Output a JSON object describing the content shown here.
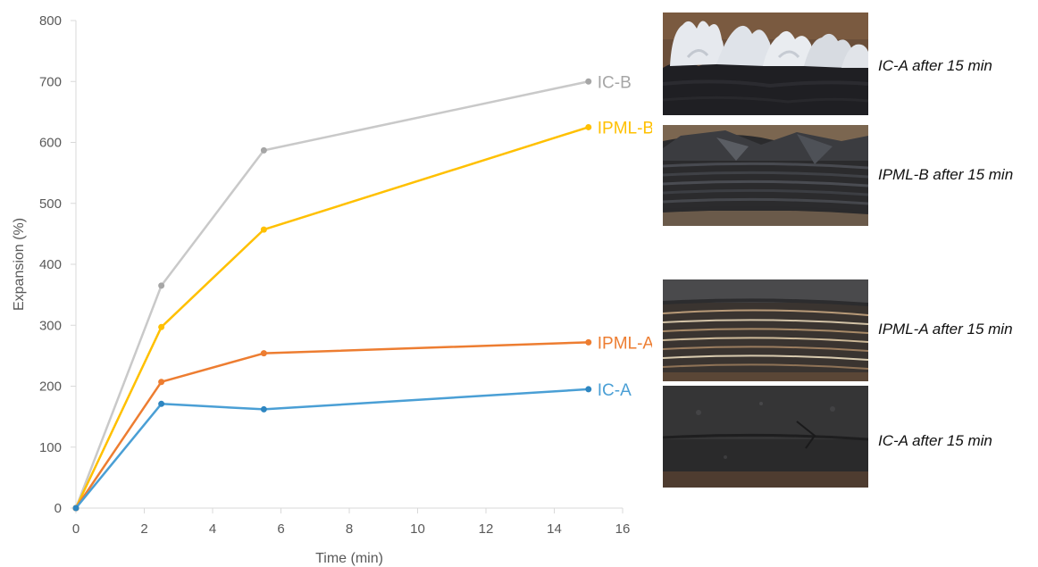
{
  "chart_data": {
    "type": "line",
    "title": "",
    "xlabel": "Time (min)",
    "ylabel": "Expansion (%)",
    "xlim": [
      0,
      16
    ],
    "ylim": [
      0,
      800
    ],
    "xticks": [
      0,
      2,
      4,
      6,
      8,
      10,
      12,
      14,
      16
    ],
    "yticks": [
      0,
      100,
      200,
      300,
      400,
      500,
      600,
      700,
      800
    ],
    "grid": false,
    "legend": "inline labels at line ends",
    "series": [
      {
        "name": "IC-B",
        "color": "#c9c9c9",
        "marker_color": "#a6a6a6",
        "label_color": "#a6a6a6",
        "x": [
          0,
          2.5,
          5.5,
          15
        ],
        "y": [
          0,
          365,
          587,
          700
        ]
      },
      {
        "name": "IPML-B",
        "color": "#ffc000",
        "marker_color": "#ffc000",
        "label_color": "#ffc000",
        "x": [
          0,
          2.5,
          5.5,
          15
        ],
        "y": [
          0,
          297,
          457,
          625
        ]
      },
      {
        "name": "IPML-A",
        "color": "#ed7d31",
        "marker_color": "#ed7d31",
        "label_color": "#ed7d31",
        "x": [
          0,
          2.5,
          5.5,
          15
        ],
        "y": [
          0,
          207,
          254,
          272
        ]
      },
      {
        "name": "IC-A",
        "color": "#4a9fd5",
        "marker_color": "#2e86c1",
        "label_color": "#4a9fd5",
        "x": [
          0,
          2.5,
          5.5,
          15
        ],
        "y": [
          0,
          171,
          162,
          195
        ]
      }
    ]
  },
  "photos": [
    {
      "caption": "IC-A after 15 min"
    },
    {
      "caption": "IPML-B after 15 min"
    },
    {
      "caption": "IPML-A after 15 min"
    },
    {
      "caption": "IC-A after 15 min"
    }
  ]
}
